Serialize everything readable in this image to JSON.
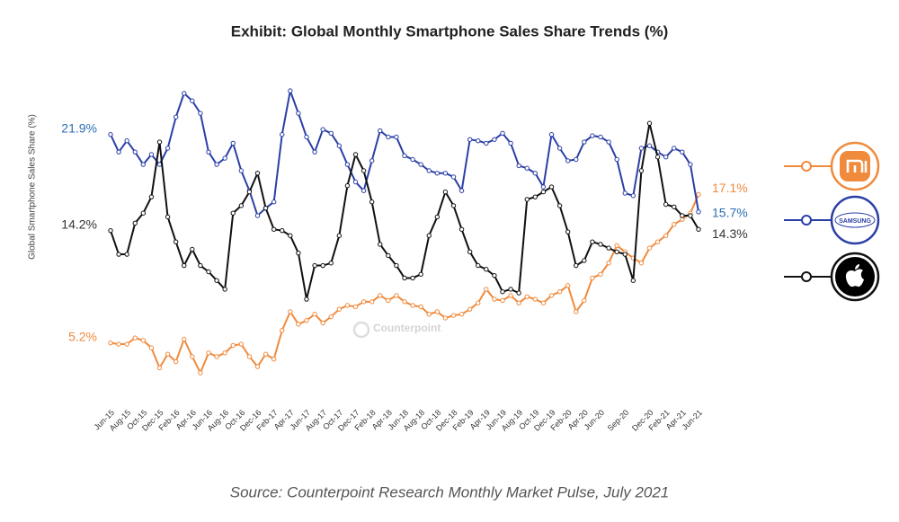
{
  "chart_data": {
    "type": "line",
    "title": "Exhibit: Global Monthly Smartphone Sales Share Trends (%)",
    "y_label": "Global Smartphone Sales Share (%)",
    "source": "Source: Counterpoint Research Monthly Market Pulse, July 2021",
    "watermark": "Counterpoint",
    "categories": [
      "Jun-15",
      null,
      "Aug-15",
      null,
      "Oct-15",
      null,
      "Dec-15",
      null,
      "Feb-16",
      null,
      "Apr-16",
      null,
      "Jun-16",
      null,
      "Aug-16",
      null,
      "Oct-16",
      null,
      "Dec-16",
      null,
      "Feb-17",
      null,
      "Apr-17",
      null,
      "Jun-17",
      null,
      "Aug-17",
      null,
      "Oct-17",
      null,
      "Dec-17",
      null,
      "Feb-18",
      null,
      "Apr-18",
      null,
      "Jun-18",
      null,
      "Aug-18",
      null,
      "Oct-18",
      null,
      "Dec-18",
      null,
      "Feb-19",
      null,
      "Apr-19",
      null,
      "Jun-19",
      null,
      "Aug-19",
      null,
      "Oct-19",
      null,
      "Dec-19",
      null,
      "Feb-20",
      null,
      "Apr-20",
      null,
      "Jun-20",
      null,
      null,
      "Sep-20",
      null,
      null,
      "Dec-20",
      null,
      "Feb-21",
      null,
      "Apr-21",
      null,
      "Jun-21"
    ],
    "ylim": [
      1,
      26.2
    ],
    "series": [
      {
        "color": "#f08a3c",
        "values": [
          5.2,
          5.1,
          5.1,
          5.6,
          5.4,
          4.8,
          3.2,
          4.3,
          3.7,
          5.5,
          4.1,
          2.8,
          4.4,
          4.1,
          4.4,
          5.0,
          5.1,
          4.1,
          3.3,
          4.3,
          3.9,
          6.2,
          7.7,
          6.7,
          7.0,
          7.5,
          6.8,
          7.3,
          7.9,
          8.2,
          8.1,
          8.5,
          8.5,
          9.0,
          8.6,
          9.0,
          8.5,
          8.2,
          8.1,
          7.5,
          7.7,
          7.2,
          7.4,
          7.5,
          7.9,
          8.4,
          9.5,
          8.7,
          8.6,
          9.0,
          8.4,
          8.9,
          8.7,
          8.4,
          9.0,
          9.3,
          9.8,
          7.7,
          8.6,
          10.4,
          10.7,
          11.6,
          13.0,
          12.5,
          12.0,
          11.6,
          12.8,
          13.3,
          13.8,
          14.7,
          15.1,
          15.6,
          17.1
        ],
        "value_labels": [
          "5.2%",
          null,
          null,
          null,
          null,
          null,
          null,
          null,
          null,
          null,
          null,
          null,
          null,
          null,
          null,
          null,
          null,
          null,
          null,
          null,
          null,
          null,
          null,
          null,
          null,
          null,
          null,
          null,
          null,
          null,
          null,
          null,
          null,
          null,
          null,
          null,
          null,
          null,
          null,
          null,
          null,
          null,
          null,
          null,
          null,
          null,
          null,
          null,
          null,
          null,
          null,
          null,
          null,
          null,
          null,
          null,
          null,
          null,
          null,
          null,
          null,
          null,
          null,
          null,
          null,
          null,
          null,
          null,
          null,
          null,
          null,
          null,
          "17.1%"
        ]
      },
      {
        "name": "SAMSUNG",
        "color": "#2b3fa6",
        "values": [
          21.9,
          20.5,
          21.4,
          20.5,
          19.5,
          20.3,
          19.5,
          20.8,
          23.3,
          25.2,
          24.6,
          23.6,
          20.5,
          19.5,
          20.0,
          21.2,
          19.0,
          17.4,
          15.4,
          16.0,
          16.5,
          21.9,
          25.4,
          23.6,
          21.7,
          20.5,
          22.3,
          22.0,
          21.0,
          19.5,
          18.1,
          17.4,
          19.8,
          22.2,
          21.7,
          21.7,
          20.2,
          19.9,
          19.5,
          19.0,
          18.8,
          18.8,
          18.5,
          17.4,
          21.5,
          21.4,
          21.2,
          21.5,
          22.0,
          21.2,
          19.4,
          19.2,
          18.8,
          17.7,
          21.9,
          20.8,
          19.8,
          19.9,
          21.3,
          21.8,
          21.7,
          21.3,
          19.9,
          17.2,
          17.0,
          20.8,
          21.0,
          20.5,
          20.1,
          20.8,
          20.5,
          19.5,
          15.7
        ],
        "value_labels": [
          "21.9%",
          null,
          null,
          null,
          null,
          null,
          null,
          null,
          null,
          null,
          null,
          null,
          null,
          null,
          null,
          null,
          null,
          null,
          null,
          null,
          null,
          null,
          null,
          null,
          null,
          null,
          null,
          null,
          null,
          null,
          null,
          null,
          null,
          null,
          null,
          null,
          null,
          null,
          null,
          null,
          null,
          null,
          null,
          null,
          null,
          null,
          null,
          null,
          null,
          null,
          null,
          null,
          null,
          null,
          null,
          null,
          null,
          null,
          null,
          null,
          null,
          null,
          null,
          null,
          null,
          null,
          null,
          null,
          null,
          null,
          null,
          null,
          "15.7%"
        ]
      },
      {
        "color": "#111111",
        "values": [
          14.2,
          12.3,
          12.3,
          14.8,
          15.6,
          16.9,
          21.3,
          15.3,
          13.3,
          11.4,
          12.7,
          11.4,
          10.9,
          10.2,
          9.5,
          15.6,
          16.2,
          17.3,
          18.8,
          16.0,
          14.3,
          14.2,
          13.8,
          12.4,
          8.7,
          11.4,
          11.4,
          11.6,
          13.8,
          17.8,
          20.3,
          19.0,
          16.5,
          13.1,
          12.2,
          11.4,
          10.4,
          10.4,
          10.7,
          13.8,
          15.3,
          17.3,
          16.2,
          14.3,
          12.5,
          11.4,
          11.1,
          10.6,
          9.3,
          9.5,
          9.2,
          16.7,
          16.9,
          17.3,
          17.7,
          16.2,
          14.1,
          11.4,
          11.8,
          13.3,
          13.1,
          12.8,
          12.5,
          12.3,
          10.2,
          19.0,
          22.8,
          20.1,
          16.3,
          16.1,
          15.4,
          15.4,
          14.3
        ],
        "value_labels": [
          "14.2%",
          null,
          null,
          null,
          null,
          null,
          null,
          null,
          null,
          null,
          null,
          null,
          null,
          null,
          null,
          null,
          null,
          null,
          null,
          null,
          null,
          null,
          null,
          null,
          null,
          null,
          null,
          null,
          null,
          null,
          null,
          null,
          null,
          null,
          null,
          null,
          null,
          null,
          null,
          null,
          null,
          null,
          null,
          null,
          null,
          null,
          null,
          null,
          null,
          null,
          null,
          null,
          null,
          null,
          null,
          null,
          null,
          null,
          null,
          null,
          null,
          null,
          null,
          null,
          null,
          null,
          null,
          null,
          null,
          null,
          null,
          null,
          "14.3%"
        ]
      }
    ]
  }
}
